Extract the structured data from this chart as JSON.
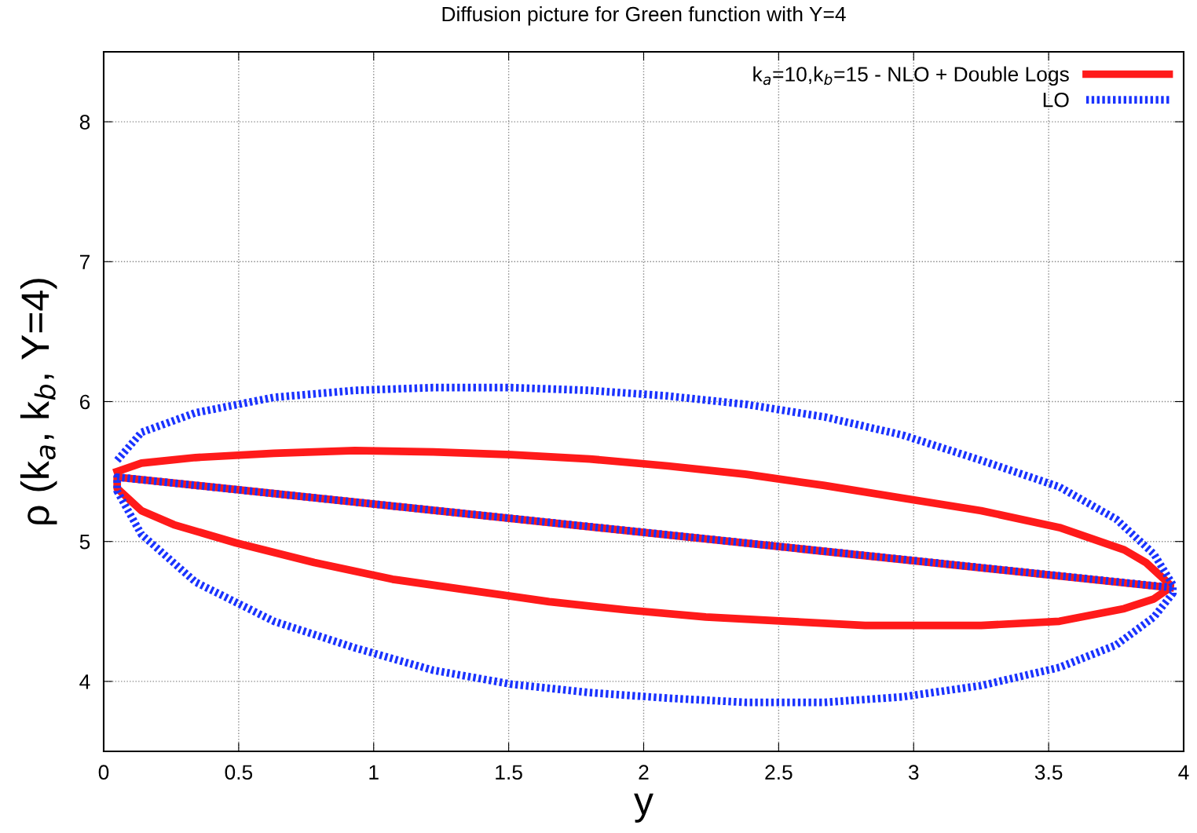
{
  "chart_data": {
    "type": "line",
    "title": "Diffusion picture for Green function with Y=4",
    "xlabel": "y",
    "ylabel": "ρ (k$_{a}$, k$_{b}$, Y=4)",
    "xlim": [
      0,
      4
    ],
    "ylim": [
      3.5,
      8.5
    ],
    "xticks": [
      0,
      0.5,
      1,
      1.5,
      2,
      2.5,
      3,
      3.5,
      4
    ],
    "yticks": [
      4,
      5,
      6,
      7,
      8
    ],
    "grid": true,
    "legend": "top right",
    "marker": "none",
    "series": [
      {
        "name": "k$_{a}$=10,k$_{b}$=15 - NLO + Double Logs",
        "color": "#ff1a1a",
        "line_style": "solid",
        "x": [
          0.05,
          0.14,
          0.34,
          0.63,
          0.93,
          1.22,
          1.51,
          1.8,
          2.09,
          2.38,
          2.67,
          2.96,
          3.25,
          3.54,
          3.78,
          3.86,
          3.95,
          3.95,
          3.89,
          3.78,
          3.54,
          3.25,
          3.02,
          2.82,
          2.53,
          2.23,
          1.94,
          1.65,
          1.36,
          1.07,
          0.78,
          0.49,
          0.26,
          0.14,
          0.05,
          0.05,
          3.95
        ],
        "values": [
          5.5,
          5.56,
          5.6,
          5.63,
          5.65,
          5.64,
          5.62,
          5.59,
          5.54,
          5.48,
          5.4,
          5.31,
          5.22,
          5.1,
          4.94,
          4.85,
          4.69,
          4.67,
          4.59,
          4.52,
          4.43,
          4.4,
          4.4,
          4.4,
          4.43,
          4.46,
          4.51,
          4.57,
          4.65,
          4.73,
          4.85,
          4.99,
          5.12,
          5.22,
          5.38,
          5.46,
          4.67
        ]
      },
      {
        "name": "LO",
        "color": "#1a33ff",
        "line_style": "dotted",
        "x": [
          0.05,
          0.14,
          0.34,
          0.63,
          0.93,
          1.22,
          1.51,
          1.8,
          2.09,
          2.38,
          2.67,
          2.96,
          3.25,
          3.54,
          3.75,
          3.89,
          3.96,
          3.96,
          3.89,
          3.75,
          3.54,
          3.25,
          2.96,
          2.67,
          2.38,
          2.09,
          1.8,
          1.51,
          1.22,
          0.93,
          0.63,
          0.34,
          0.14,
          0.05,
          0.05,
          3.96
        ],
        "values": [
          5.58,
          5.78,
          5.92,
          6.03,
          6.08,
          6.1,
          6.1,
          6.08,
          6.04,
          5.98,
          5.89,
          5.76,
          5.58,
          5.39,
          5.16,
          4.91,
          4.69,
          4.63,
          4.46,
          4.26,
          4.1,
          3.97,
          3.89,
          3.85,
          3.85,
          3.88,
          3.92,
          3.98,
          4.08,
          4.24,
          4.43,
          4.71,
          5.05,
          5.36,
          5.46,
          4.67
        ]
      }
    ]
  }
}
